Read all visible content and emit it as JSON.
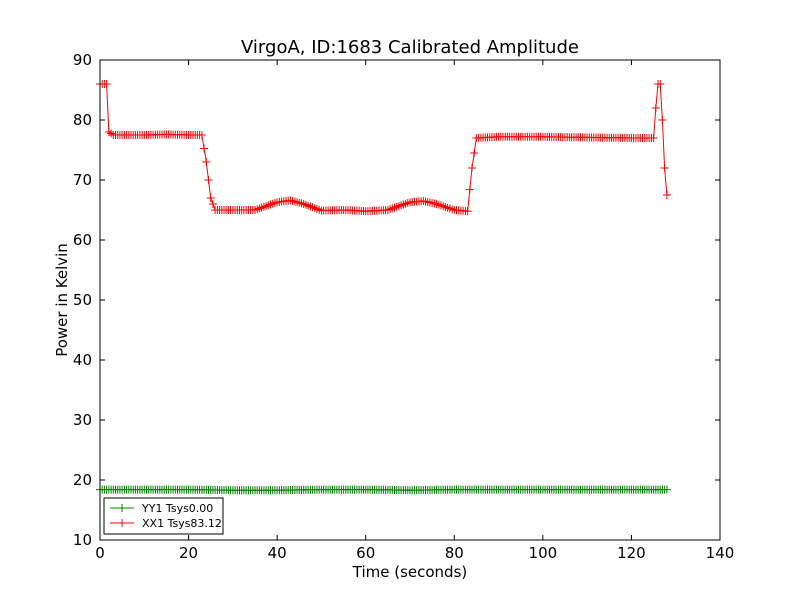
{
  "chart_data": {
    "type": "line",
    "title": "VirgoA, ID:1683 Calibrated Amplitude",
    "xlabel": "Time (seconds)",
    "ylabel": "Power in Kelvin",
    "xlim": [
      0,
      140
    ],
    "ylim": [
      10,
      90
    ],
    "xticks": [
      0,
      20,
      40,
      60,
      80,
      100,
      120,
      140
    ],
    "yticks": [
      10,
      20,
      30,
      40,
      50,
      60,
      70,
      80,
      90
    ],
    "grid": false,
    "legend_position": "lower-left",
    "series": [
      {
        "name": "YY1 Tsys0.00",
        "color": "#008000",
        "marker": "plus",
        "x": [
          0,
          10,
          20,
          30,
          40,
          50,
          60,
          70,
          80,
          90,
          100,
          110,
          120,
          128
        ],
        "y": [
          18.4,
          18.4,
          18.4,
          18.3,
          18.3,
          18.4,
          18.4,
          18.3,
          18.4,
          18.4,
          18.4,
          18.4,
          18.4,
          18.4
        ]
      },
      {
        "name": "XX1 Tsys83.12",
        "color": "#ff0000",
        "marker": "plus",
        "x": [
          0,
          1.5,
          2,
          3,
          10,
          15,
          20,
          23,
          24,
          25,
          26,
          30,
          35,
          40,
          43,
          46,
          50,
          55,
          60,
          65,
          70,
          73,
          76,
          80,
          83,
          84,
          85,
          90,
          100,
          110,
          120,
          125,
          125.5,
          126,
          126.5,
          127,
          127.5,
          128
        ],
        "y": [
          86,
          86,
          78,
          77.5,
          77.5,
          77.6,
          77.5,
          77.5,
          73,
          67,
          65,
          65,
          65,
          66.3,
          66.6,
          66,
          64.9,
          65,
          64.8,
          65,
          66.3,
          66.5,
          66,
          65,
          64.8,
          72,
          77,
          77.2,
          77.2,
          77.1,
          77,
          77,
          82,
          86,
          86,
          80,
          72,
          67.5
        ]
      }
    ]
  }
}
